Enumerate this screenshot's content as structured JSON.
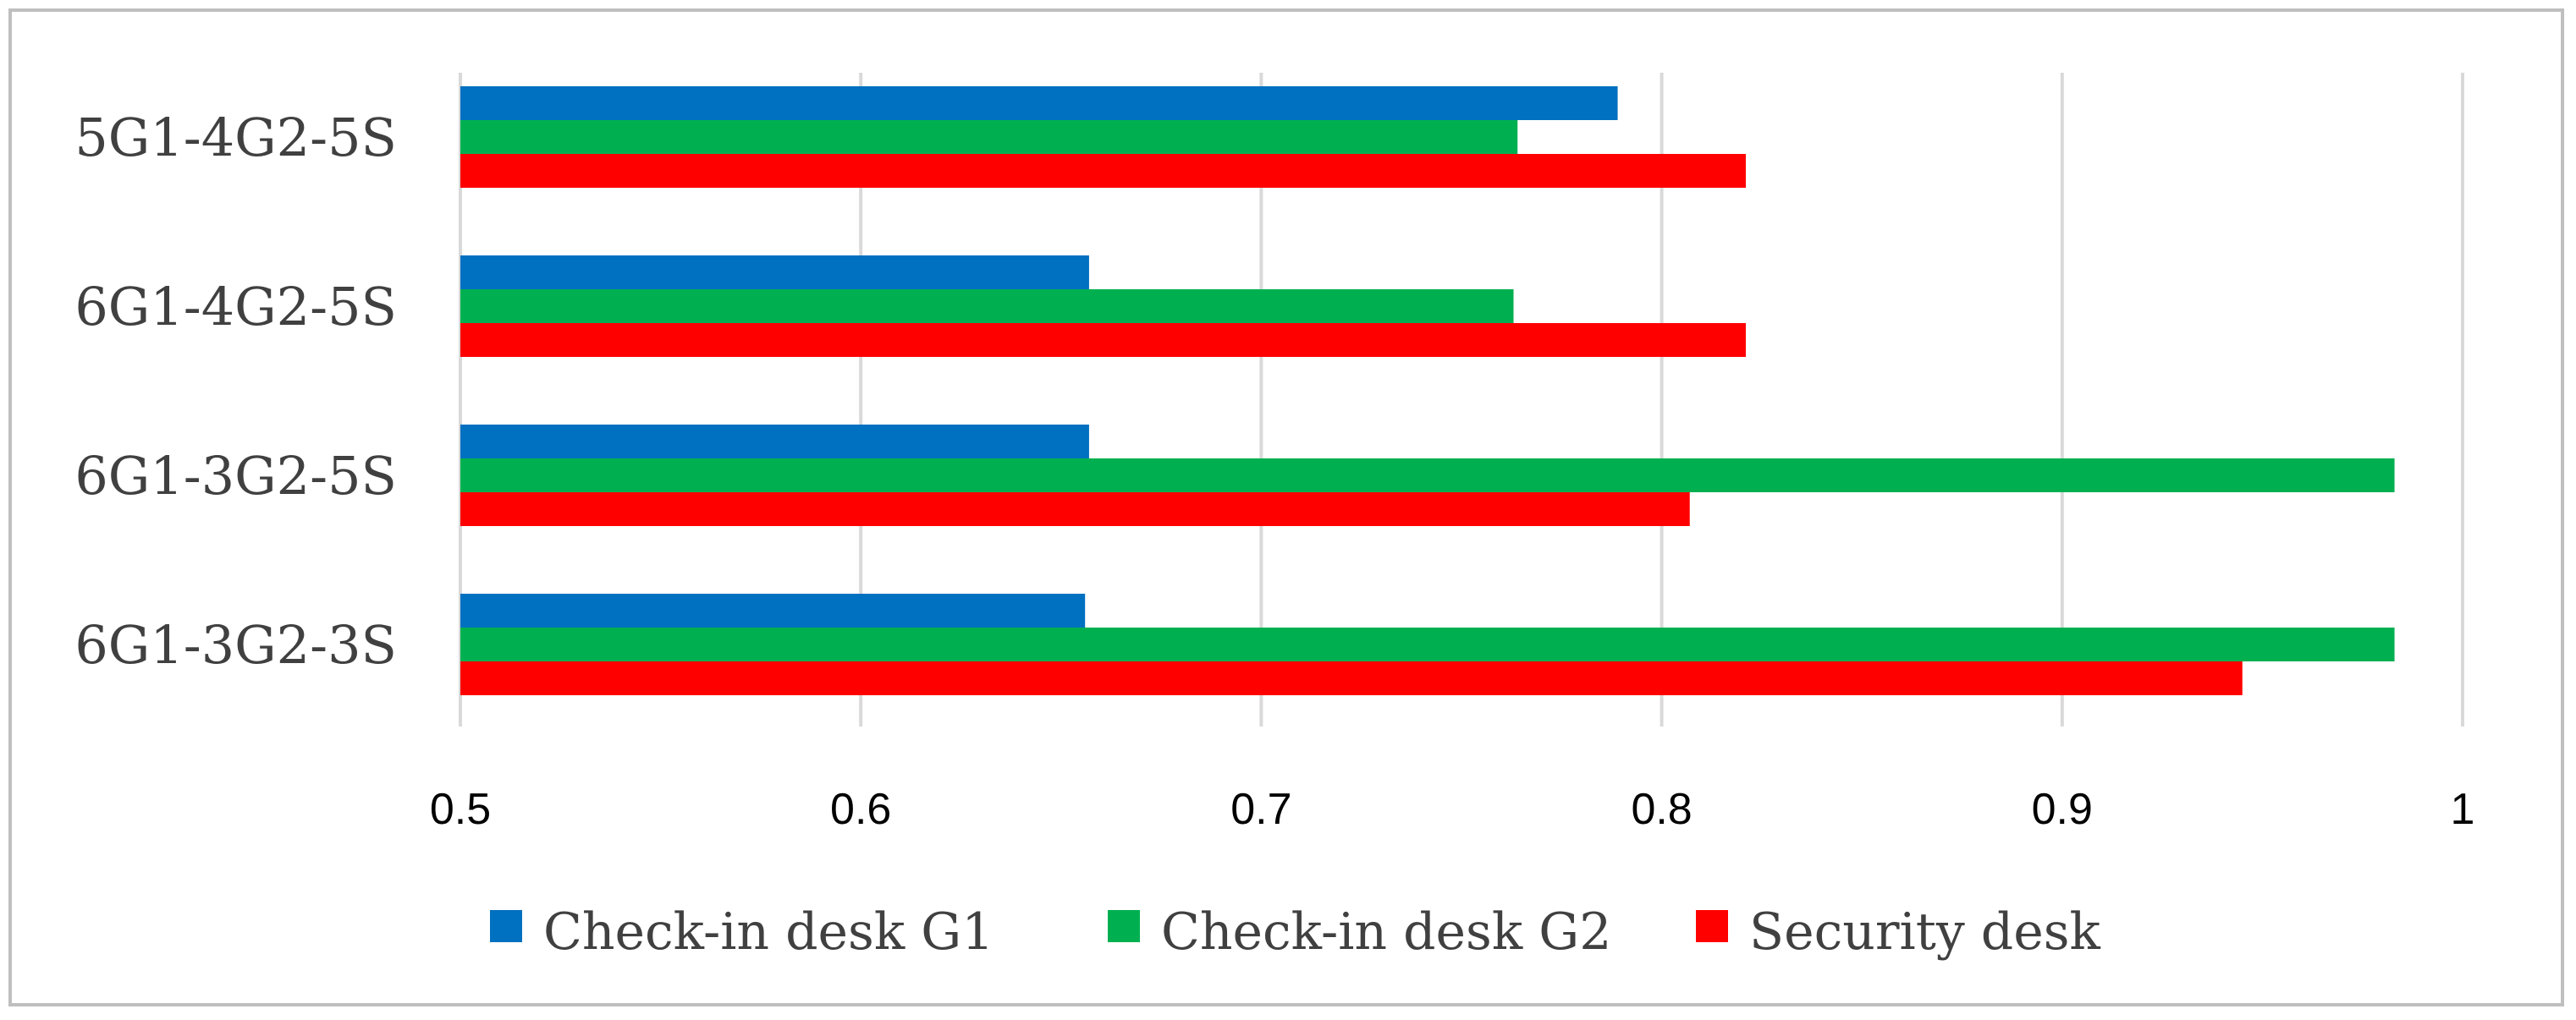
{
  "chart_data": {
    "type": "bar",
    "orientation": "horizontal",
    "title": "",
    "xlabel": "",
    "ylabel": "",
    "categories": [
      "5G1-4G2-5S",
      "6G1-4G2-5S",
      "6G1-3G2-5S",
      "6G1-3G2-3S"
    ],
    "series": [
      {
        "name": "Check-in desk G1",
        "color": "#0070C0",
        "values": [
          0.789,
          0.657,
          0.657,
          0.656
        ]
      },
      {
        "name": "Check-in desk G2",
        "color": "#00B050",
        "values": [
          0.764,
          0.763,
          0.983,
          0.983
        ]
      },
      {
        "name": "Security desk",
        "color": "#FF0000",
        "values": [
          0.821,
          0.821,
          0.807,
          0.945
        ]
      }
    ],
    "xlim": [
      0.5,
      1.0
    ],
    "xticks": [
      0.5,
      0.6,
      0.7,
      0.8,
      0.9,
      1.0
    ],
    "xtick_labels": [
      "0.5",
      "0.6",
      "0.7",
      "0.8",
      "0.9",
      "1"
    ],
    "grid": "vertical",
    "legend_position": "bottom"
  }
}
